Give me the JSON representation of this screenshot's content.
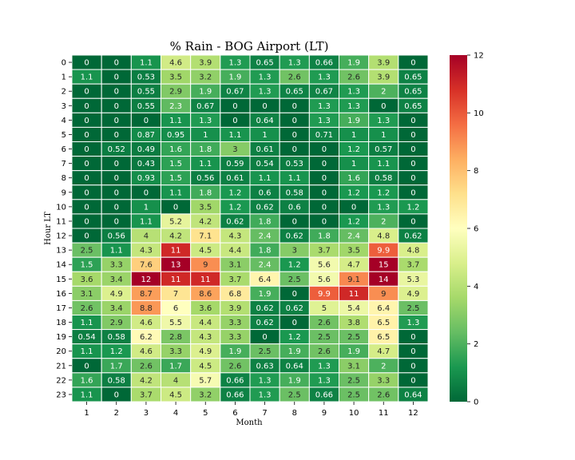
{
  "chart_data": {
    "type": "heatmap",
    "title": "% Rain - BOG Airport (LT)",
    "xlabel": "Month",
    "ylabel": "Hour LT",
    "x_categories": [
      "1",
      "2",
      "3",
      "4",
      "5",
      "6",
      "7",
      "8",
      "9",
      "10",
      "11",
      "12"
    ],
    "y_categories": [
      "0",
      "1",
      "2",
      "3",
      "4",
      "5",
      "6",
      "7",
      "8",
      "9",
      "10",
      "11",
      "12",
      "13",
      "14",
      "15",
      "16",
      "17",
      "18",
      "19",
      "20",
      "21",
      "22",
      "23"
    ],
    "values": [
      [
        0,
        0,
        1.1,
        4.6,
        3.9,
        1.3,
        0.65,
        1.3,
        0.66,
        1.9,
        3.9,
        0
      ],
      [
        1.1,
        0,
        0.53,
        3.5,
        3.2,
        1.9,
        1.3,
        2.6,
        1.3,
        2.6,
        3.9,
        0.65
      ],
      [
        0,
        0,
        0.55,
        2.9,
        1.9,
        0.67,
        1.3,
        0.65,
        0.67,
        1.3,
        2,
        0.65
      ],
      [
        0,
        0,
        0.55,
        2.3,
        0.67,
        0,
        0,
        0,
        1.3,
        1.3,
        0,
        0.65
      ],
      [
        0,
        0,
        0,
        1.1,
        1.3,
        0,
        0.64,
        0,
        1.3,
        1.9,
        1.3,
        0
      ],
      [
        0,
        0,
        0.87,
        0.95,
        1,
        1.1,
        1,
        0,
        0.71,
        1,
        1,
        0
      ],
      [
        0,
        0.52,
        0.49,
        1.6,
        1.8,
        3,
        0.61,
        0,
        0,
        1.2,
        0.57,
        0
      ],
      [
        0,
        0,
        0.43,
        1.5,
        1.1,
        0.59,
        0.54,
        0.53,
        0,
        1,
        1.1,
        0
      ],
      [
        0,
        0,
        0.93,
        1.5,
        0.56,
        0.61,
        1.1,
        1.1,
        0,
        1.6,
        0.58,
        0
      ],
      [
        0,
        0,
        0,
        1.1,
        1.8,
        1.2,
        0.6,
        0.58,
        0,
        1.2,
        1.2,
        0
      ],
      [
        0,
        0,
        1,
        0,
        3.5,
        1.2,
        0.62,
        0.6,
        0,
        0,
        1.3,
        1.2
      ],
      [
        0,
        0,
        1.1,
        5.2,
        4.2,
        0.62,
        1.8,
        0,
        0,
        1.2,
        2,
        0
      ],
      [
        0,
        0.56,
        4,
        4.2,
        7.1,
        4.3,
        2.4,
        0.62,
        1.8,
        2.4,
        4.8,
        0.62
      ],
      [
        2.5,
        1.1,
        4.3,
        11,
        4.5,
        4.4,
        1.8,
        3,
        3.7,
        3.5,
        9.9,
        4.8
      ],
      [
        1.5,
        3.3,
        7.6,
        13,
        9,
        3.1,
        2.4,
        1.2,
        5.6,
        4.7,
        15,
        3.7
      ],
      [
        3.6,
        3.4,
        12,
        11,
        11,
        3.7,
        6.4,
        2.5,
        5.6,
        9.1,
        14,
        5.3
      ],
      [
        3.1,
        4.9,
        8.7,
        7,
        8.6,
        6.8,
        1.9,
        0,
        9.9,
        11,
        9,
        4.9
      ],
      [
        2.6,
        3.4,
        8.8,
        6,
        3.6,
        3.9,
        0.62,
        0.62,
        5,
        5.4,
        6.4,
        2.5
      ],
      [
        1.1,
        2.9,
        4.6,
        5.5,
        4.4,
        3.3,
        0.62,
        0,
        2.6,
        3.8,
        6.5,
        1.3
      ],
      [
        0.54,
        0.58,
        6.2,
        2.8,
        4.3,
        3.3,
        0,
        1.2,
        2.5,
        2.5,
        6.5,
        0
      ],
      [
        1.1,
        1.2,
        4.6,
        3.3,
        4.9,
        1.9,
        2.5,
        1.9,
        2.6,
        1.9,
        4.7,
        0
      ],
      [
        0,
        1.7,
        2.6,
        1.7,
        4.5,
        2.6,
        0.63,
        0.64,
        1.3,
        3.1,
        2,
        0
      ],
      [
        1.6,
        0.58,
        4.2,
        4,
        5.7,
        0.66,
        1.3,
        1.9,
        1.3,
        2.5,
        3.3,
        0
      ],
      [
        1.1,
        0,
        3.7,
        4.5,
        3.2,
        0.66,
        1.3,
        2.5,
        0.66,
        2.5,
        2.6,
        0.64
      ]
    ],
    "colorbar": {
      "min": 0,
      "max": 12,
      "ticks": [
        "0",
        "2",
        "4",
        "6",
        "8",
        "10",
        "12"
      ],
      "colormap": "RdYlGn_r",
      "colors": [
        "#006837",
        "#1a9850",
        "#66bd63",
        "#a6d96a",
        "#d9ef8b",
        "#ffffbf",
        "#fee08b",
        "#fdae61",
        "#f46d43",
        "#d73027",
        "#a50026"
      ]
    },
    "grid": false,
    "cell_border_color": "#ffffff"
  }
}
